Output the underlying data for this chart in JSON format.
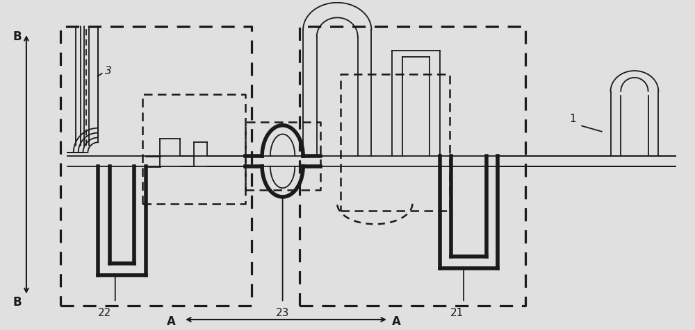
{
  "bg_color": "#e0e0e0",
  "line_color": "#1a1a1a",
  "thick_lw": 4.0,
  "med_lw": 2.0,
  "thin_lw": 1.3,
  "dash_lw": 1.8,
  "figsize": [
    10.0,
    4.76
  ],
  "dpi": 100,
  "labels": {
    "B_top": "B",
    "B_bot": "B",
    "A_left": "A",
    "A_right": "A",
    "num1": "1",
    "num3": "3",
    "num21": "21",
    "num22": "22",
    "num23": "23"
  }
}
